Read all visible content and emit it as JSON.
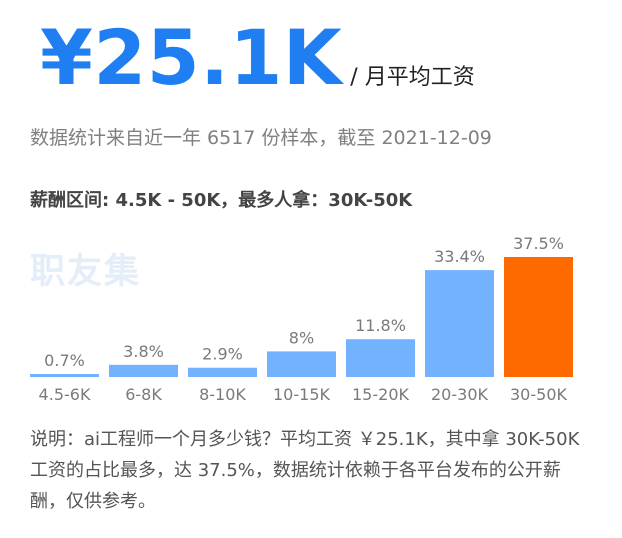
{
  "header": {
    "amount": "¥25.1K",
    "unit_label": "/ 月平均工资"
  },
  "subtitle": "数据统计来自近一年 6517 份样本，截至 2021-12-09",
  "range_text": "薪酬区间: 4.5K - 50K，最多人拿：30K-50K",
  "watermark": "职友集",
  "description": "说明：ai工程师一个月多少钱？平均工资 ￥25.1K，其中拿 30K-50K 工资的占比最多，达 37.5%，数据统计依赖于各平台发布的公开薪酬，仅供参考。",
  "colors": {
    "bar": "#73b2ff",
    "highlight": "#ff6a00",
    "amount": "#1f7ef2",
    "label": "#7a7a7a"
  },
  "chart_data": {
    "type": "bar",
    "categories": [
      "4.5-6K",
      "6-8K",
      "8-10K",
      "10-15K",
      "15-20K",
      "20-30K",
      "30-50K"
    ],
    "values": [
      0.7,
      3.8,
      2.9,
      8,
      11.8,
      33.4,
      37.5
    ],
    "value_labels": [
      "0.7%",
      "3.8%",
      "2.9%",
      "8%",
      "11.8%",
      "33.4%",
      "37.5%"
    ],
    "highlight_index": 6,
    "ylim": [
      0,
      37.5
    ],
    "title": "",
    "xlabel": "",
    "ylabel": "",
    "grid": false,
    "legend": "none"
  }
}
